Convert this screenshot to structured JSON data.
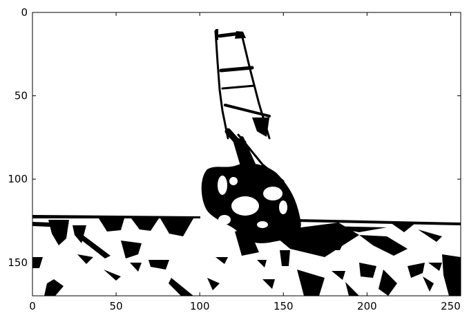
{
  "chart_data": {
    "type": "heatmap",
    "title": "",
    "xlabel": "",
    "ylabel": "",
    "colormap": [
      "#ffffff",
      "#000000"
    ],
    "xlim": [
      0,
      256
    ],
    "ylim": [
      170,
      0
    ],
    "x_ticks": [
      0,
      50,
      100,
      150,
      200,
      250
    ],
    "y_ticks": [
      0,
      50,
      100,
      150
    ],
    "x_tick_labels": [
      "0",
      "50",
      "100",
      "150",
      "200",
      "250"
    ],
    "y_tick_labels": [
      "0",
      "50",
      "100",
      "150"
    ],
    "grid": false,
    "image_content": "binary-thresholded windsurfer on water"
  }
}
